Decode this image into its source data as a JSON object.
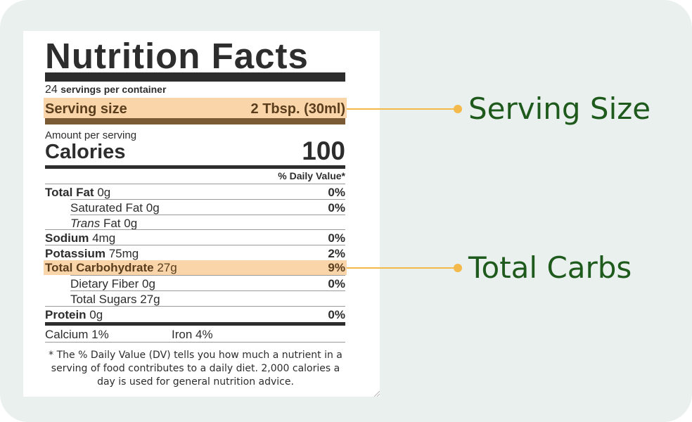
{
  "label": {
    "title": "Nutrition Facts",
    "servings_count": "24",
    "servings_text": "servings per container",
    "serving_size_label": "Serving size",
    "serving_size_value": "2 Tbsp. (30ml)",
    "amount_per_serving": "Amount per serving",
    "calories_label": "Calories",
    "calories_value": "100",
    "daily_value_header": "% Daily Value*",
    "nutrients": [
      {
        "name": "Total Fat",
        "amount": "0g",
        "dv": "0%"
      },
      {
        "name": "Saturated Fat",
        "amount": "0g",
        "dv": "0%"
      },
      {
        "name_italic": "Trans",
        "name": "Fat",
        "amount": "0g",
        "dv": ""
      },
      {
        "name": "Sodium",
        "amount": "4mg",
        "dv": "0%"
      },
      {
        "name": "Potassium",
        "amount": "75mg",
        "dv": "2%"
      },
      {
        "name": "Total Carbohydrate",
        "amount": "27g",
        "dv": "9%"
      },
      {
        "name": "Dietary Fiber",
        "amount": "0g",
        "dv": "0%"
      },
      {
        "name": "Total Sugars",
        "amount": "27g",
        "dv": ""
      },
      {
        "name": "Protein",
        "amount": "0g",
        "dv": "0%"
      }
    ],
    "calcium": "Calcium 1%",
    "iron": "Iron 4%",
    "footnote": "* The % Daily Value (DV) tells you how much a nutrient in a serving of food contributes to a daily diet. 2,000 calories a day is used for general nutrition advice."
  },
  "annotations": {
    "serving_size": "Serving Size",
    "total_carbs": "Total Carbs"
  },
  "colors": {
    "highlight": "#f9d5a9",
    "connector": "#f3b94a",
    "annotation_text": "#1f5a1d",
    "background": "#e9f0ee"
  }
}
